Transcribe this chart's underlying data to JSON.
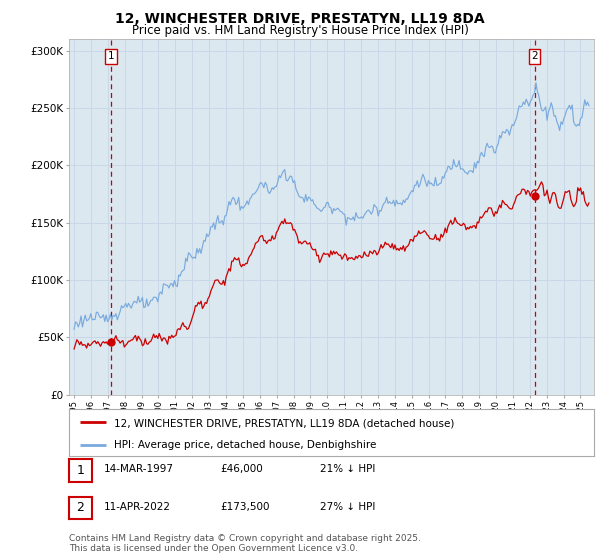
{
  "title": "12, WINCHESTER DRIVE, PRESTATYN, LL19 8DA",
  "subtitle": "Price paid vs. HM Land Registry's House Price Index (HPI)",
  "ylim": [
    0,
    310000
  ],
  "yticks": [
    0,
    50000,
    100000,
    150000,
    200000,
    250000,
    300000
  ],
  "ytick_labels": [
    "£0",
    "£50K",
    "£100K",
    "£150K",
    "£200K",
    "£250K",
    "£300K"
  ],
  "red_line_color": "#cc0000",
  "blue_line_color": "#7aaadd",
  "grid_color": "#c8d8e8",
  "bg_color": "#dce8f0",
  "marker1_year": 1997.2,
  "marker1_value": 46000,
  "marker2_year": 2022.28,
  "marker2_value": 173500,
  "legend_red": "12, WINCHESTER DRIVE, PRESTATYN, LL19 8DA (detached house)",
  "legend_blue": "HPI: Average price, detached house, Denbighshire",
  "table_row1": [
    "1",
    "14-MAR-1997",
    "£46,000",
    "21% ↓ HPI"
  ],
  "table_row2": [
    "2",
    "11-APR-2022",
    "£173,500",
    "27% ↓ HPI"
  ],
  "footnote": "Contains HM Land Registry data © Crown copyright and database right 2025.\nThis data is licensed under the Open Government Licence v3.0."
}
